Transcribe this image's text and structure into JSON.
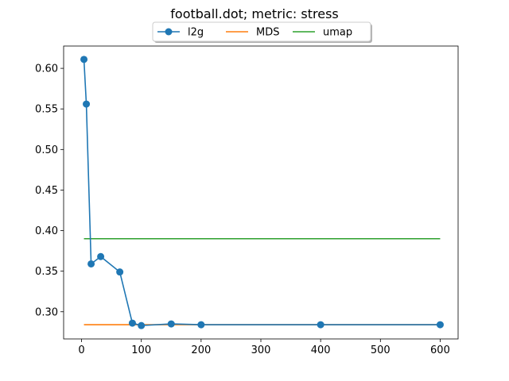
{
  "chart_data": {
    "type": "line",
    "title": "football.dot; metric: stress",
    "xlabel": "",
    "ylabel": "",
    "xlim": [
      -30,
      630
    ],
    "ylim": [
      0.2665,
      0.6275
    ],
    "xticks": [
      0,
      100,
      200,
      300,
      400,
      500,
      600
    ],
    "yticks": [
      0.3,
      0.35,
      0.4,
      0.45,
      0.5,
      0.55,
      0.6
    ],
    "xtick_labels": [
      "0",
      "100",
      "200",
      "300",
      "400",
      "500",
      "600"
    ],
    "ytick_labels": [
      "0.30",
      "0.35",
      "0.40",
      "0.45",
      "0.50",
      "0.55",
      "0.60"
    ],
    "grid": false,
    "legend_position": "top-center",
    "series": [
      {
        "name": "l2g",
        "color": "#1f77b4",
        "marker": "circle",
        "x": [
          4,
          8,
          16,
          32,
          64,
          85,
          100,
          150,
          200,
          400,
          600
        ],
        "y": [
          0.611,
          0.556,
          0.359,
          0.368,
          0.349,
          0.286,
          0.283,
          0.285,
          0.284,
          0.284,
          0.284
        ]
      },
      {
        "name": "MDS",
        "color": "#ff7f0e",
        "marker": "none",
        "x": [
          4,
          600
        ],
        "y": [
          0.284,
          0.284
        ]
      },
      {
        "name": "umap",
        "color": "#2ca02c",
        "marker": "none",
        "x": [
          4,
          600
        ],
        "y": [
          0.39,
          0.39
        ]
      }
    ]
  }
}
